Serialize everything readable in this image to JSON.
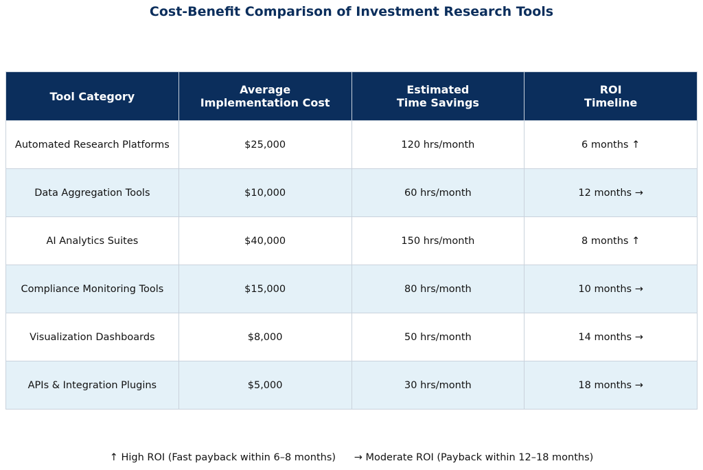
{
  "chart_data": {
    "type": "table",
    "title": "Cost-Benefit Comparison of Investment Research Tools",
    "columns": [
      [
        "Tool Category"
      ],
      [
        "Average",
        "Implementation Cost"
      ],
      [
        "Estimated",
        "Time Savings"
      ],
      [
        "ROI",
        "Timeline"
      ]
    ],
    "rows": [
      [
        "Automated Research Platforms",
        "$25,000",
        "120 hrs/month",
        "6 months ↑"
      ],
      [
        "Data Aggregation Tools",
        "$10,000",
        "60 hrs/month",
        "12 months →"
      ],
      [
        "AI Analytics Suites",
        "$40,000",
        "150 hrs/month",
        "8 months ↑"
      ],
      [
        "Compliance Monitoring Tools",
        "$15,000",
        "80 hrs/month",
        "10 months →"
      ],
      [
        "Visualization Dashboards",
        "$8,000",
        "50 hrs/month",
        "14 months →"
      ],
      [
        "APIs & Integration Plugins",
        "$5,000",
        "30 hrs/month",
        "18 months →"
      ]
    ],
    "legend": [
      "↑ High ROI (Fast payback within 6–8 months)",
      "→ Moderate ROI (Payback within 12–18 months)"
    ]
  },
  "colors": {
    "header_bg": "#0b2e5c",
    "title": "#0b2e5c",
    "row_alt": "#e4f1f8",
    "border": "#c9d2dc"
  }
}
